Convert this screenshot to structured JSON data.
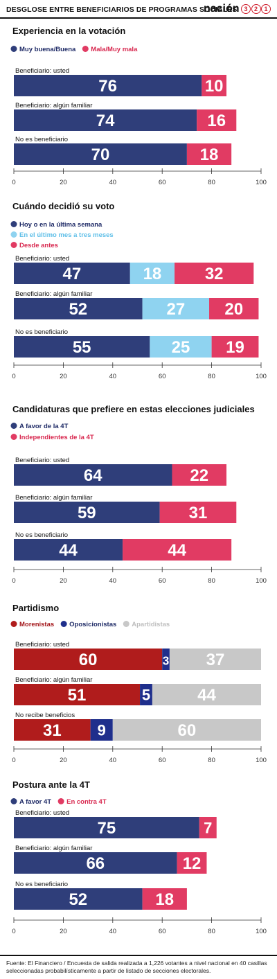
{
  "header": {
    "title": "DESGLOSE ENTRE BENEFICIARIOS DE PROGRAMAS SOCIALES",
    "logo_word": "nación",
    "logo_digits": [
      "3",
      "2",
      "1"
    ]
  },
  "footer": {
    "source": "Fuente: El Financiero / Encuesta de salida realizada a 1,226 votantes a nivel nacional en 40 casillas seleccionadas probabilísticamente a partir de listado de secciones electorales."
  },
  "chart_data": [
    {
      "type": "bar",
      "orientation": "horizontal",
      "stacked": true,
      "title": "Experiencia en la votación",
      "categories": [
        "Beneficiario: usted",
        "Beneficiario: algún familiar",
        "No es beneficiario"
      ],
      "series": [
        {
          "name": "Muy buena/Buena",
          "color": "#2f3e7a",
          "legend_text_color": "#1e2a66",
          "values": [
            76,
            74,
            70
          ]
        },
        {
          "name": "Mala/Muy mala",
          "color": "#e13b63",
          "legend_text_color": "#d8284f",
          "values": [
            10,
            16,
            18
          ]
        }
      ],
      "xlim": [
        0,
        100
      ],
      "ticks": [
        0,
        20,
        40,
        60,
        80,
        100
      ],
      "grid": false
    },
    {
      "type": "bar",
      "orientation": "horizontal",
      "stacked": true,
      "title": "Cuándo decidió su voto",
      "categories": [
        "Beneficiario: usted",
        "Beneficiario: algún familiar",
        "No es beneficiario"
      ],
      "series": [
        {
          "name": "Hoy o en la última semana",
          "color": "#2f3e7a",
          "legend_text_color": "#1e2a66",
          "values": [
            47,
            52,
            55
          ]
        },
        {
          "name": "En el último mes a tres meses",
          "color": "#8fd3f0",
          "legend_text_color": "#5fbfe8",
          "values": [
            18,
            27,
            25
          ]
        },
        {
          "name": "Desde antes",
          "color": "#e13b63",
          "legend_text_color": "#d8284f",
          "values": [
            32,
            20,
            19
          ]
        }
      ],
      "xlim": [
        0,
        100
      ],
      "ticks": [
        0,
        20,
        40,
        60,
        80,
        100
      ],
      "grid": false
    },
    {
      "type": "bar",
      "orientation": "horizontal",
      "stacked": true,
      "title": "Candidaturas que prefiere en estas elecciones judiciales",
      "categories": [
        "Beneficiario: usted",
        "Beneficiario: algún familiar",
        "No es beneficiario"
      ],
      "series": [
        {
          "name": "A favor de la 4T",
          "color": "#2f3e7a",
          "legend_text_color": "#1e2a66",
          "values": [
            64,
            59,
            44
          ]
        },
        {
          "name": "Independientes de la 4T",
          "color": "#e13b63",
          "legend_text_color": "#d8284f",
          "values": [
            22,
            31,
            44
          ]
        }
      ],
      "xlim": [
        0,
        100
      ],
      "ticks": [
        0,
        20,
        40,
        60,
        80,
        100
      ],
      "grid": false
    },
    {
      "type": "bar",
      "orientation": "horizontal",
      "stacked": true,
      "title": "Partidismo",
      "categories": [
        "Beneficiario: usted",
        "Beneficiario: algún familiar",
        "No recibe beneficios"
      ],
      "series": [
        {
          "name": "Morenistas",
          "color": "#b01c1c",
          "legend_text_color": "#a3161a",
          "values": [
            60,
            51,
            31
          ]
        },
        {
          "name": "Oposicionistas",
          "color": "#1f2f8c",
          "legend_text_color": "#1e2a66",
          "values": [
            3,
            5,
            9
          ]
        },
        {
          "name": "Apartidistas",
          "color": "#c8c8c8",
          "legend_text_color": "#bdbdbd",
          "values": [
            37,
            44,
            60
          ]
        }
      ],
      "xlim": [
        0,
        100
      ],
      "ticks": [
        0,
        20,
        40,
        60,
        80,
        100
      ],
      "grid": false
    },
    {
      "type": "bar",
      "orientation": "horizontal",
      "stacked": true,
      "title": "Postura ante la 4T",
      "categories": [
        "Beneficiario: usted",
        "Beneficiario: algún familiar",
        "No es beneficiario"
      ],
      "series": [
        {
          "name": "A favor 4T",
          "color": "#2f3e7a",
          "legend_text_color": "#1e2a66",
          "values": [
            75,
            66,
            52
          ]
        },
        {
          "name": "En contra 4T",
          "color": "#e13b63",
          "legend_text_color": "#d8284f",
          "values": [
            7,
            12,
            18
          ]
        }
      ],
      "xlim": [
        0,
        100
      ],
      "ticks": [
        0,
        20,
        40,
        60,
        80,
        100
      ],
      "grid": false
    }
  ]
}
